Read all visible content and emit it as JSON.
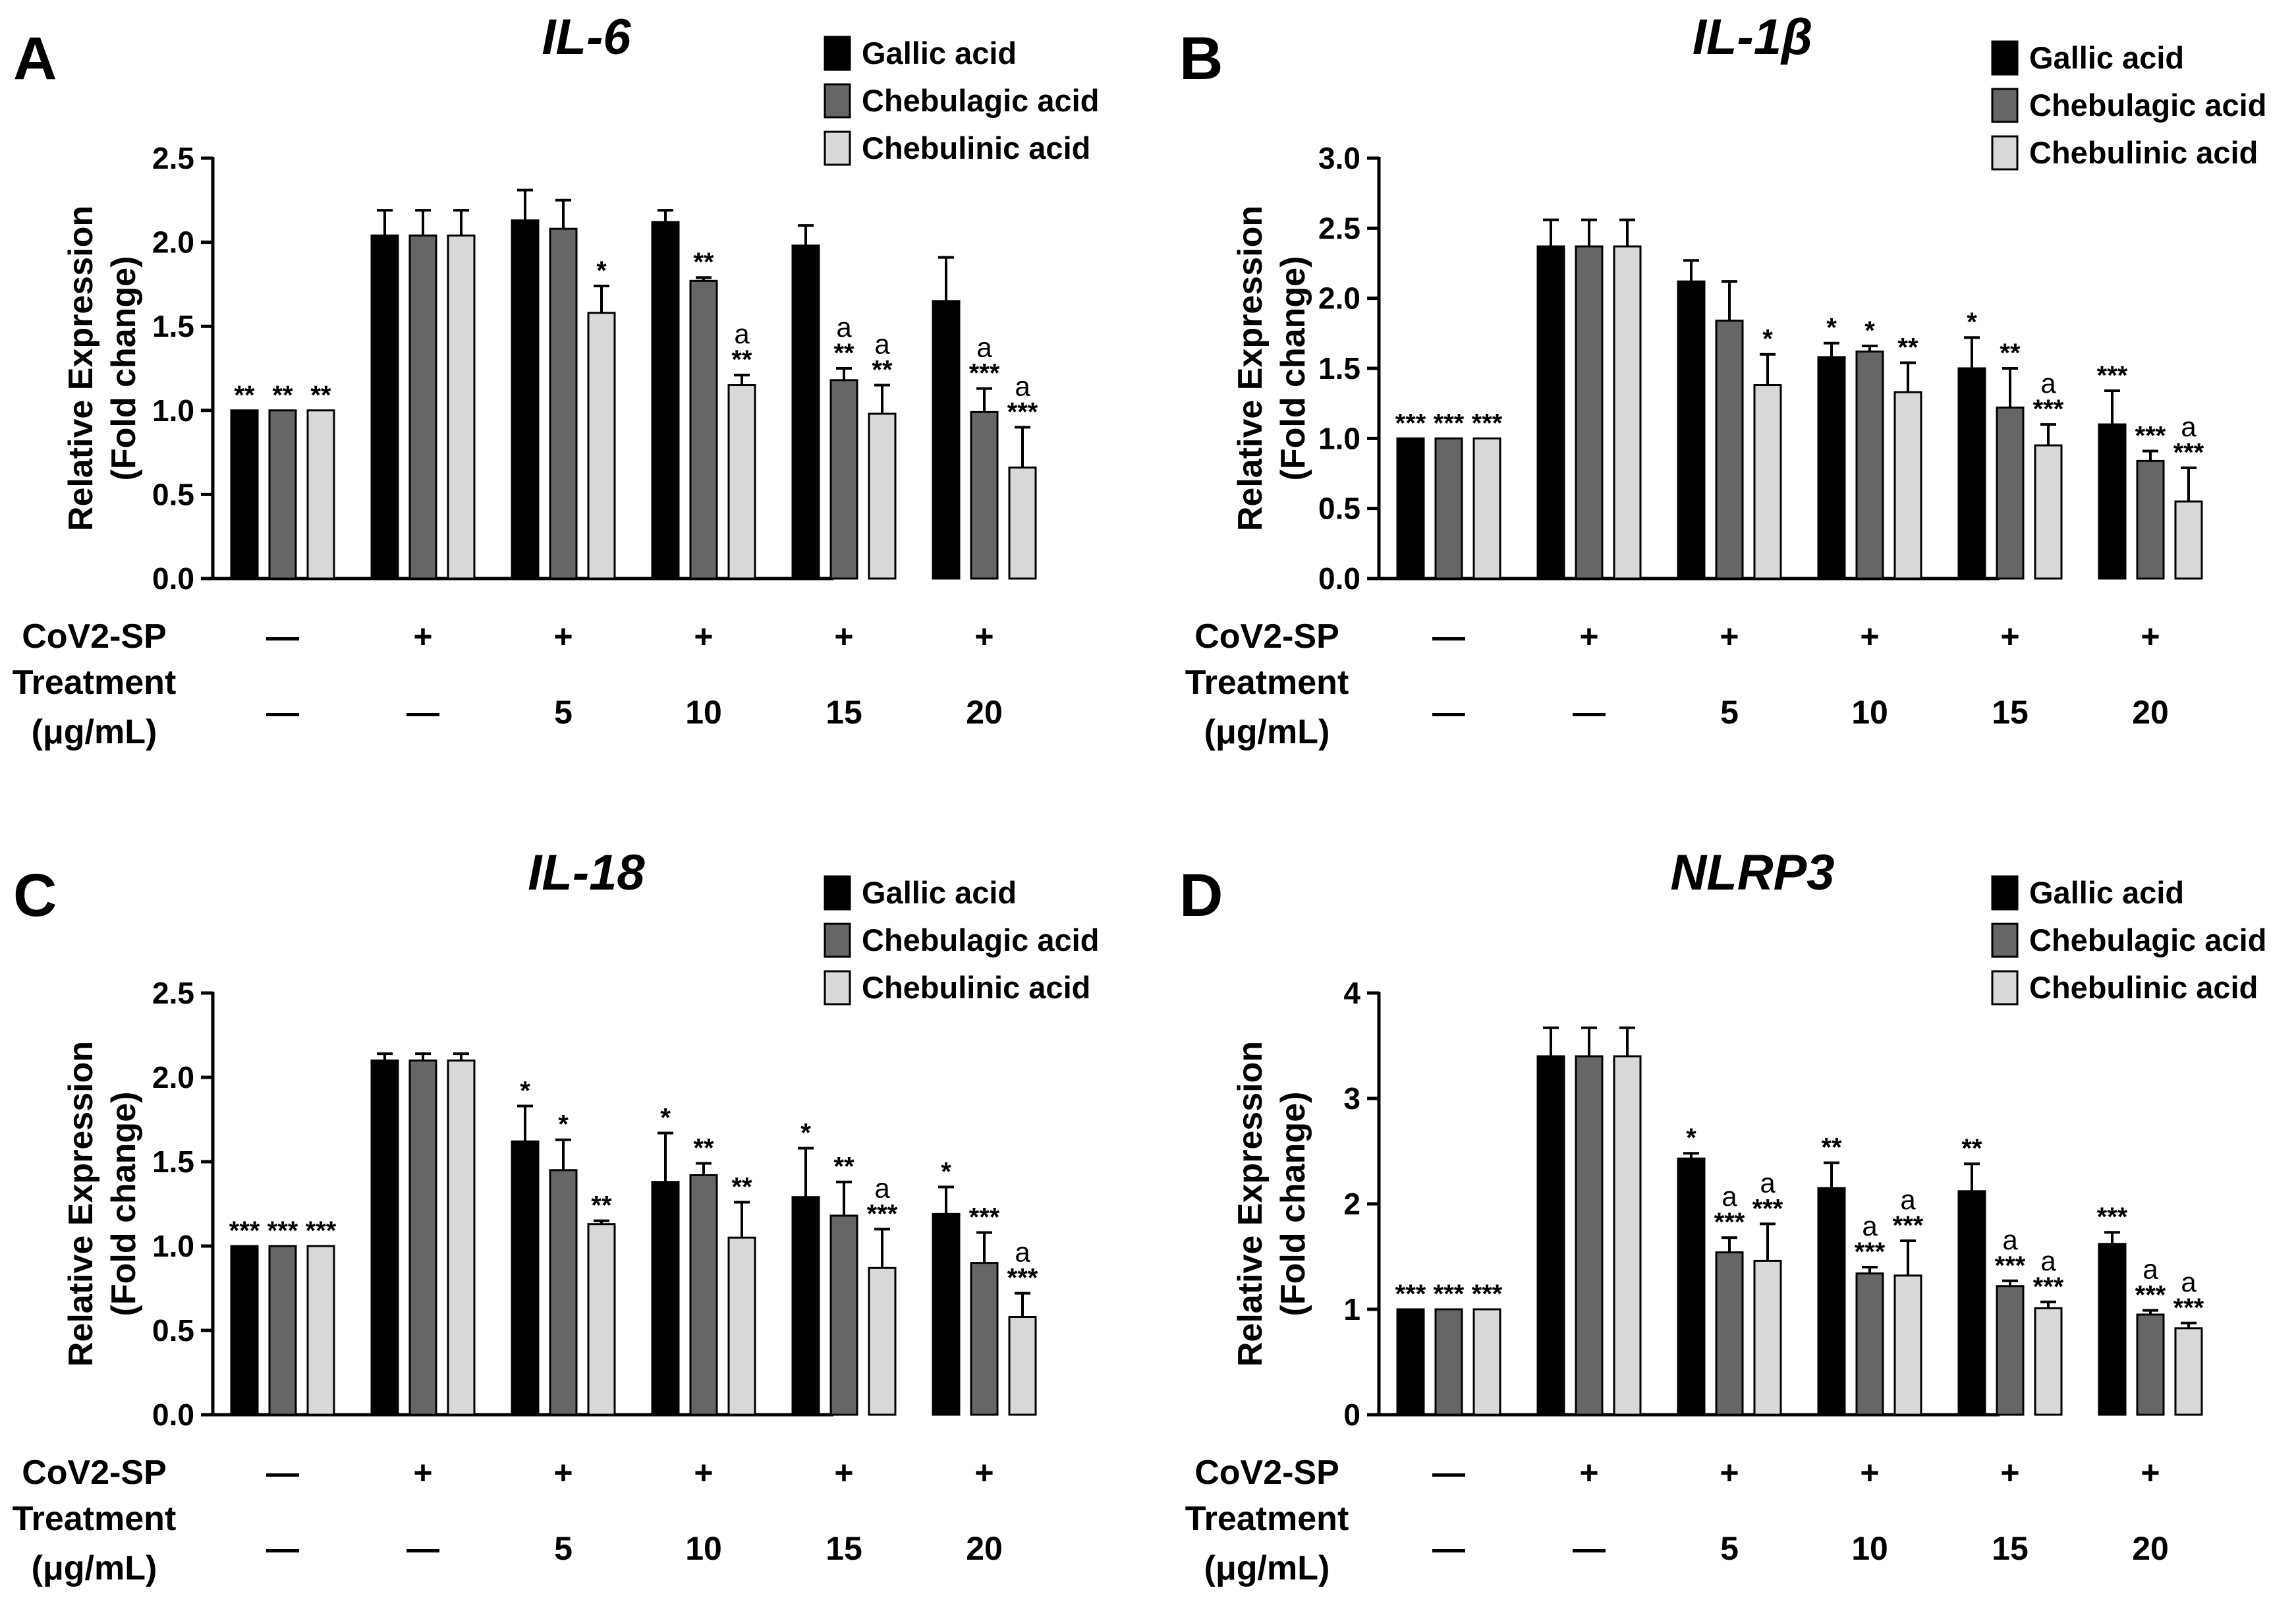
{
  "figure": {
    "treatment_row_labels": [
      "CoV2-SP",
      "Treatment",
      "(μg/mL)"
    ]
  },
  "colors": {
    "gallic": "#000000",
    "chebulagic": "#666666",
    "chebulinic": "#d9d9d9",
    "outline": "#000000"
  },
  "chart_data": [
    {
      "type": "bar",
      "panel": "A",
      "title": "IL-6",
      "ylabel": [
        "Relative Expression",
        "(Fold change)"
      ],
      "ylim": [
        0,
        2.5
      ],
      "yticks": [
        "0.0",
        "0.5",
        "1.0",
        "1.5",
        "2.0",
        "2.5"
      ],
      "legend": [
        "Gallic acid",
        "Chebulagic acid",
        "Chebulinic acid"
      ],
      "legend_position": "top-right",
      "groups": [
        {
          "cov2sp": "—",
          "treatment": "—"
        },
        {
          "cov2sp": "+",
          "treatment": "—"
        },
        {
          "cov2sp": "+",
          "treatment": "5"
        },
        {
          "cov2sp": "+",
          "treatment": "10"
        },
        {
          "cov2sp": "+",
          "treatment": "15"
        },
        {
          "cov2sp": "+",
          "treatment": "20"
        }
      ],
      "series": [
        {
          "name": "Gallic acid",
          "values": [
            1.0,
            2.04,
            2.13,
            2.12,
            1.98,
            1.65
          ],
          "errors": [
            0,
            0.15,
            0.18,
            0.07,
            0.12,
            0.26
          ],
          "stars": [
            "**",
            "",
            "",
            "",
            "",
            ""
          ],
          "marks": [
            "",
            "",
            "",
            "",
            "",
            ""
          ]
        },
        {
          "name": "Chebulagic acid",
          "values": [
            1.0,
            2.04,
            2.08,
            1.77,
            1.18,
            0.99
          ],
          "errors": [
            0,
            0.15,
            0.17,
            0.02,
            0.07,
            0.14
          ],
          "stars": [
            "**",
            "",
            "",
            "**",
            "**",
            "***"
          ],
          "marks": [
            "",
            "",
            "",
            "",
            "a",
            "a"
          ]
        },
        {
          "name": "Chebulinic acid",
          "values": [
            1.0,
            2.04,
            1.58,
            1.15,
            0.98,
            0.66
          ],
          "errors": [
            0,
            0.15,
            0.16,
            0.06,
            0.17,
            0.24
          ],
          "stars": [
            "**",
            "",
            "*",
            "**",
            "**",
            "***"
          ],
          "marks": [
            "",
            "",
            "",
            "a",
            "a",
            "a"
          ]
        }
      ]
    },
    {
      "type": "bar",
      "panel": "B",
      "title": "IL-1β",
      "ylabel": [
        "Relative Expression",
        "(Fold change)"
      ],
      "ylim": [
        0,
        3.0
      ],
      "yticks": [
        "0.0",
        "0.5",
        "1.0",
        "1.5",
        "2.0",
        "2.5",
        "3.0"
      ],
      "legend": [
        "Gallic acid",
        "Chebulagic acid",
        "Chebulinic acid"
      ],
      "legend_position": "top-right",
      "groups": [
        {
          "cov2sp": "—",
          "treatment": "—"
        },
        {
          "cov2sp": "+",
          "treatment": "—"
        },
        {
          "cov2sp": "+",
          "treatment": "5"
        },
        {
          "cov2sp": "+",
          "treatment": "10"
        },
        {
          "cov2sp": "+",
          "treatment": "15"
        },
        {
          "cov2sp": "+",
          "treatment": "20"
        }
      ],
      "series": [
        {
          "name": "Gallic acid",
          "values": [
            1.0,
            2.37,
            2.12,
            1.58,
            1.5,
            1.1
          ],
          "errors": [
            0,
            0.19,
            0.15,
            0.1,
            0.22,
            0.24
          ],
          "stars": [
            "***",
            "",
            "",
            "*",
            "*",
            "***"
          ],
          "marks": [
            "",
            "",
            "",
            "",
            "",
            ""
          ]
        },
        {
          "name": "Chebulagic acid",
          "values": [
            1.0,
            2.37,
            1.84,
            1.62,
            1.22,
            0.84
          ],
          "errors": [
            0,
            0.19,
            0.28,
            0.04,
            0.28,
            0.07
          ],
          "stars": [
            "***",
            "",
            "",
            "*",
            "**",
            "***"
          ],
          "marks": [
            "",
            "",
            "",
            "",
            "",
            ""
          ]
        },
        {
          "name": "Chebulinic acid",
          "values": [
            1.0,
            2.37,
            1.38,
            1.33,
            0.95,
            0.55
          ],
          "errors": [
            0,
            0.19,
            0.22,
            0.21,
            0.15,
            0.24
          ],
          "stars": [
            "***",
            "",
            "*",
            "**",
            "***",
            "***"
          ],
          "marks": [
            "",
            "",
            "",
            "",
            "a",
            "a"
          ]
        }
      ]
    },
    {
      "type": "bar",
      "panel": "C",
      "title": "IL-18",
      "ylabel": [
        "Relative Expression",
        "(Fold change)"
      ],
      "ylim": [
        0,
        2.5
      ],
      "yticks": [
        "0.0",
        "0.5",
        "1.0",
        "1.5",
        "2.0",
        "2.5"
      ],
      "legend": [
        "Gallic acid",
        "Chebulagic acid",
        "Chebulinic acid"
      ],
      "legend_position": "top-right",
      "groups": [
        {
          "cov2sp": "—",
          "treatment": "—"
        },
        {
          "cov2sp": "+",
          "treatment": "—"
        },
        {
          "cov2sp": "+",
          "treatment": "5"
        },
        {
          "cov2sp": "+",
          "treatment": "10"
        },
        {
          "cov2sp": "+",
          "treatment": "15"
        },
        {
          "cov2sp": "+",
          "treatment": "20"
        }
      ],
      "series": [
        {
          "name": "Gallic acid",
          "values": [
            1.0,
            2.1,
            1.62,
            1.38,
            1.29,
            1.19
          ],
          "errors": [
            0,
            0.04,
            0.21,
            0.29,
            0.29,
            0.16
          ],
          "stars": [
            "***",
            "",
            "*",
            "*",
            "*",
            "*"
          ],
          "marks": [
            "",
            "",
            "",
            "",
            "",
            ""
          ]
        },
        {
          "name": "Chebulagic acid",
          "values": [
            1.0,
            2.1,
            1.45,
            1.42,
            1.18,
            0.9
          ],
          "errors": [
            0,
            0.04,
            0.18,
            0.07,
            0.2,
            0.18
          ],
          "stars": [
            "***",
            "",
            "*",
            "**",
            "**",
            "***"
          ],
          "marks": [
            "",
            "",
            "",
            "",
            "",
            ""
          ]
        },
        {
          "name": "Chebulinic acid",
          "values": [
            1.0,
            2.1,
            1.13,
            1.05,
            0.87,
            0.58
          ],
          "errors": [
            0,
            0.04,
            0.02,
            0.21,
            0.23,
            0.14
          ],
          "stars": [
            "***",
            "",
            "**",
            "**",
            "***",
            "***"
          ],
          "marks": [
            "",
            "",
            "",
            "",
            "a",
            "a"
          ]
        }
      ]
    },
    {
      "type": "bar",
      "panel": "D",
      "title": "NLRP3",
      "ylabel": [
        "Relative Expression",
        "(Fold change)"
      ],
      "ylim": [
        0,
        4
      ],
      "yticks": [
        "0",
        "1",
        "2",
        "3",
        "4"
      ],
      "legend": [
        "Gallic acid",
        "Chebulagic acid",
        "Chebulinic acid"
      ],
      "legend_position": "top-right",
      "groups": [
        {
          "cov2sp": "—",
          "treatment": "—"
        },
        {
          "cov2sp": "+",
          "treatment": "—"
        },
        {
          "cov2sp": "+",
          "treatment": "5"
        },
        {
          "cov2sp": "+",
          "treatment": "10"
        },
        {
          "cov2sp": "+",
          "treatment": "15"
        },
        {
          "cov2sp": "+",
          "treatment": "20"
        }
      ],
      "series": [
        {
          "name": "Gallic acid",
          "values": [
            1.0,
            3.4,
            2.43,
            2.15,
            2.12,
            1.62
          ],
          "errors": [
            0,
            0.27,
            0.05,
            0.24,
            0.26,
            0.11
          ],
          "stars": [
            "***",
            "",
            "*",
            "**",
            "**",
            "***"
          ],
          "marks": [
            "",
            "",
            "",
            "",
            "",
            ""
          ]
        },
        {
          "name": "Chebulagic acid",
          "values": [
            1.0,
            3.4,
            1.54,
            1.34,
            1.22,
            0.95
          ],
          "errors": [
            0,
            0.27,
            0.14,
            0.06,
            0.05,
            0.04
          ],
          "stars": [
            "***",
            "",
            "***",
            "***",
            "***",
            "***"
          ],
          "marks": [
            "",
            "",
            "a",
            "a",
            "a",
            "a"
          ]
        },
        {
          "name": "Chebulinic acid",
          "values": [
            1.0,
            3.4,
            1.46,
            1.32,
            1.01,
            0.82
          ],
          "errors": [
            0,
            0.27,
            0.35,
            0.33,
            0.06,
            0.05
          ],
          "stars": [
            "***",
            "",
            "***",
            "***",
            "***",
            "***"
          ],
          "marks": [
            "",
            "",
            "a",
            "a",
            "a",
            "a"
          ]
        }
      ]
    }
  ]
}
